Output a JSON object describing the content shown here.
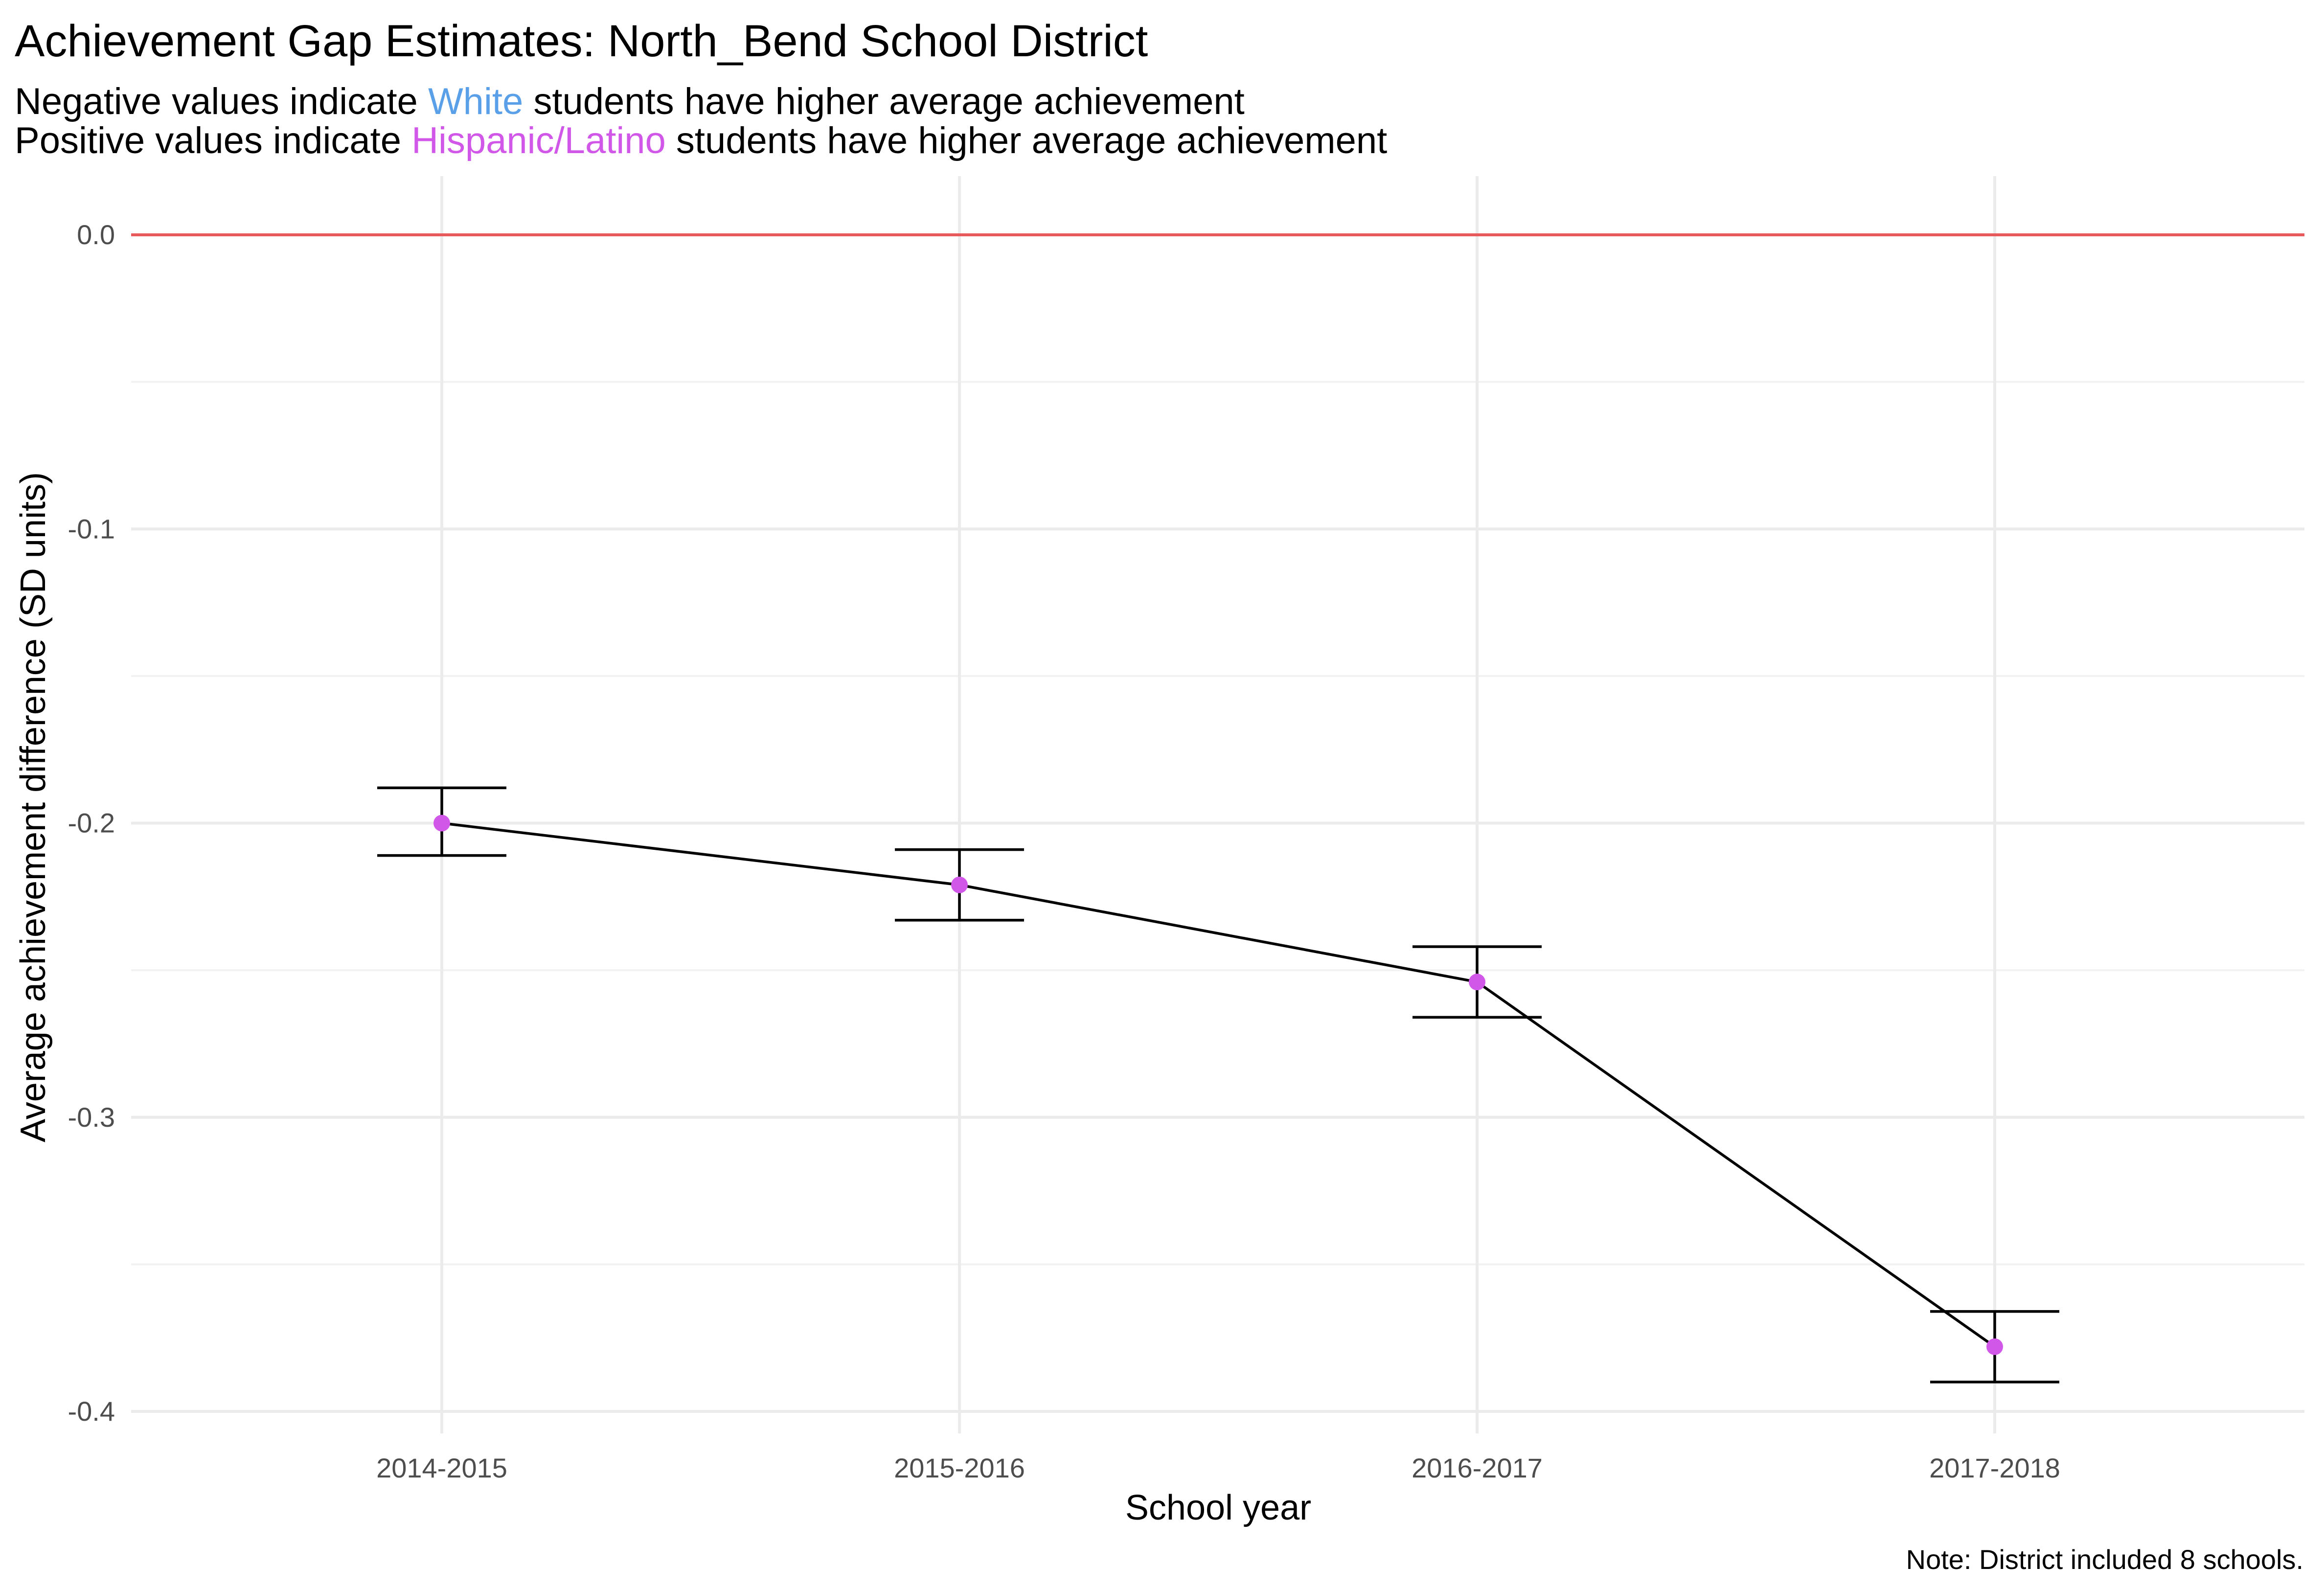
{
  "chart_data": {
    "type": "line",
    "title": "Achievement Gap Estimates: North_Bend School District",
    "subtitle": {
      "line1": {
        "before": "Negative values indicate ",
        "highlight": "White",
        "after": " students have higher average achievement",
        "highlight_color": "#5aa0e8"
      },
      "line2": {
        "before": "Positive values indicate ",
        "highlight": "Hispanic/Latino",
        "after": " students have higher average achievement",
        "highlight_color": "#d157e8"
      }
    },
    "xlabel": "School year",
    "ylabel": "Average achievement difference (SD units)",
    "caption": "Note: District included 8 schools.",
    "categories": [
      "2014-2015",
      "2015-2016",
      "2016-2017",
      "2017-2018"
    ],
    "series": [
      {
        "values": [
          -0.2,
          -0.221,
          -0.254,
          -0.378
        ],
        "lower": [
          -0.211,
          -0.233,
          -0.266,
          -0.39
        ],
        "upper": [
          -0.188,
          -0.209,
          -0.242,
          -0.366
        ],
        "color": "#000000",
        "point_color": "#d157e8"
      }
    ],
    "reference_line": {
      "y": 0,
      "color": "#e8595b"
    },
    "ylim": [
      -0.4,
      0.0
    ],
    "yticks": [
      0.0,
      -0.1,
      -0.2,
      -0.3,
      -0.4
    ],
    "ytick_labels": [
      "0.0",
      "-0.1",
      "-0.2",
      "-0.3",
      "-0.4"
    ],
    "grid": true,
    "legend": "none"
  }
}
